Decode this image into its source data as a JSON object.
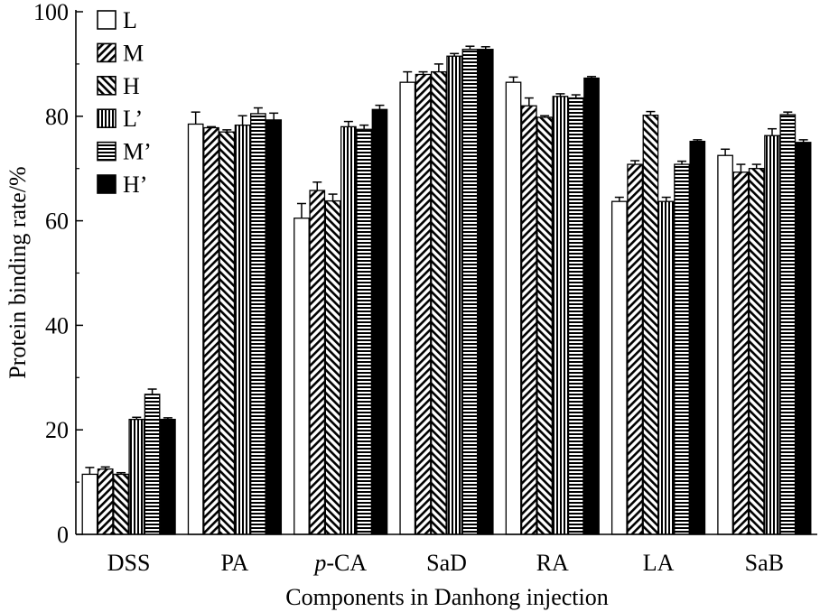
{
  "chart_data": {
    "type": "bar",
    "title": "",
    "xlabel": "Components in Danhong injection",
    "ylabel": "Protein binding rate/%",
    "ylim": [
      0,
      100
    ],
    "yticks": [
      0,
      20,
      40,
      60,
      80,
      100
    ],
    "grid": false,
    "legend_position": "top-left",
    "categories": [
      "DSS",
      "PA",
      "p-CA",
      "SaD",
      "RA",
      "LA",
      "SaB"
    ],
    "category_labels": [
      {
        "italic": "",
        "rest": "DSS"
      },
      {
        "italic": "",
        "rest": "PA"
      },
      {
        "italic": "p",
        "rest": "-CA"
      },
      {
        "italic": "",
        "rest": "SaD"
      },
      {
        "italic": "",
        "rest": "RA"
      },
      {
        "italic": "",
        "rest": "LA"
      },
      {
        "italic": "",
        "rest": "SaB"
      }
    ],
    "series": [
      {
        "name": "L",
        "pattern": "empty",
        "values": [
          11.5,
          78.5,
          60.5,
          86.5,
          86.5,
          63.7,
          72.5
        ],
        "errors": [
          1.3,
          2.3,
          2.8,
          2.0,
          1.0,
          0.8,
          1.2
        ]
      },
      {
        "name": "M",
        "pattern": "back-diag",
        "values": [
          12.5,
          77.8,
          65.8,
          88.0,
          82.0,
          70.8,
          69.3
        ],
        "errors": [
          0.4,
          0.2,
          1.6,
          0.5,
          1.5,
          0.7,
          1.5
        ]
      },
      {
        "name": "H",
        "pattern": "fwd-diag",
        "values": [
          11.5,
          77.0,
          63.8,
          88.5,
          79.8,
          80.2,
          70.0
        ],
        "errors": [
          0.3,
          0.4,
          1.3,
          1.5,
          0.3,
          0.7,
          0.8
        ]
      },
      {
        "name": "L’",
        "pattern": "vertical",
        "values": [
          22.0,
          78.3,
          78.0,
          91.5,
          83.8,
          63.7,
          76.3
        ],
        "errors": [
          0.4,
          1.8,
          1.0,
          0.5,
          0.5,
          0.8,
          1.3
        ]
      },
      {
        "name": "M’",
        "pattern": "horizontal",
        "values": [
          26.8,
          80.5,
          77.5,
          92.8,
          83.5,
          70.8,
          80.3
        ],
        "errors": [
          1.0,
          1.1,
          0.8,
          0.6,
          0.6,
          0.6,
          0.5
        ]
      },
      {
        "name": "H’",
        "pattern": "solid",
        "values": [
          22.0,
          79.3,
          81.3,
          92.8,
          87.3,
          75.2,
          75.0
        ],
        "errors": [
          0.3,
          1.3,
          0.8,
          0.5,
          0.3,
          0.3,
          0.5
        ]
      }
    ]
  }
}
